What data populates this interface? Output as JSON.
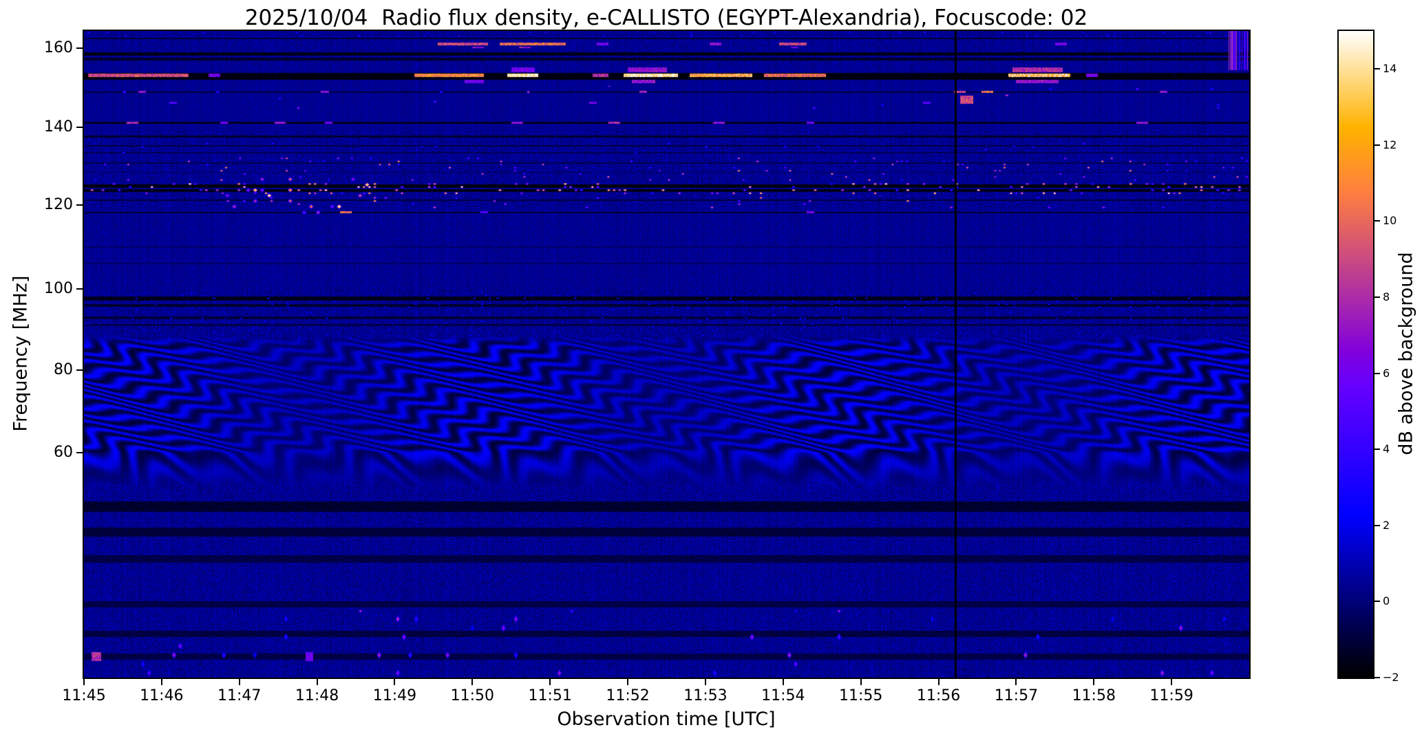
{
  "chart_data": {
    "type": "heatmap",
    "title": "2025/10/04  Radio flux density, e-CALLISTO (EGYPT-Alexandria), Focuscode: 02",
    "xlabel": "Observation time [UTC]",
    "ylabel": "Frequency [MHz]",
    "description": "Solar radio spectrogram (dynamic spectrum); mostly dark-blue background near 0 dB with horizontal RFI bands, bright intermittent bursts near 153 MHz and 118-133 MHz, a wavy interference-fringe pattern between about 58 and 88 MHz, and a vertical black data dropout just after 11:56 UTC.",
    "x_ticks": [
      "11:45",
      "11:46",
      "11:47",
      "11:48",
      "11:49",
      "11:50",
      "11:51",
      "11:52",
      "11:53",
      "11:54",
      "11:55",
      "11:56",
      "11:57",
      "11:58",
      "11:59"
    ],
    "x_tick_minutes": [
      0,
      1,
      2,
      3,
      4,
      5,
      6,
      7,
      8,
      9,
      10,
      11,
      12,
      13,
      14
    ],
    "x_span_min": 15,
    "x_start_utc": "11:45",
    "x_end_utc": "12:00",
    "y_ticks": [
      160,
      140,
      120,
      100,
      80,
      60
    ],
    "y_range_mhz": [
      45,
      166
    ],
    "y_scale_points": [
      [
        0.0,
        166
      ],
      [
        0.027,
        160
      ],
      [
        0.149,
        140
      ],
      [
        0.269,
        120
      ],
      [
        0.399,
        100
      ],
      [
        0.524,
        80
      ],
      [
        0.652,
        60
      ],
      [
        1.0,
        45
      ]
    ],
    "colorbar": {
      "label": "dB above background",
      "ticks": [
        -2,
        0,
        2,
        4,
        6,
        8,
        10,
        12,
        14
      ],
      "tick_labels": [
        "−2",
        "0",
        "2",
        "4",
        "6",
        "8",
        "10",
        "12",
        "14"
      ],
      "vmin": -2,
      "vmax": 15,
      "colormap": "gnuplot2"
    },
    "background_level_db": 0.45,
    "features": {
      "dark_lines": [
        {
          "f": 163.4,
          "w": 0.4,
          "v": -1.0
        },
        {
          "f": 158.6,
          "w": 0.9,
          "v": -1.5
        },
        {
          "f": 157.2,
          "w": 0.7,
          "v": -1.3
        },
        {
          "f": 152.9,
          "w": 1.8,
          "v": -1.7
        },
        {
          "f": 148.9,
          "w": 0.4,
          "v": -1.0
        },
        {
          "f": 141.2,
          "w": 0.5,
          "v": -1.4
        },
        {
          "f": 137.6,
          "w": 0.5,
          "v": -1.2
        },
        {
          "f": 135.2,
          "w": 0.3,
          "v": -0.8
        },
        {
          "f": 133.4,
          "w": 0.4,
          "v": -0.6
        },
        {
          "f": 130.8,
          "w": 0.3,
          "v": -0.7
        },
        {
          "f": 128.4,
          "w": 0.3,
          "v": -0.6
        },
        {
          "f": 124.9,
          "w": 0.9,
          "v": -1.7
        },
        {
          "f": 123.7,
          "w": 0.8,
          "v": -1.6
        },
        {
          "f": 121.2,
          "w": 0.4,
          "v": -1.0
        },
        {
          "f": 118.2,
          "w": 0.4,
          "v": -1.1
        },
        {
          "f": 110.0,
          "w": 0.3,
          "v": -0.3
        },
        {
          "f": 106.0,
          "w": 0.3,
          "v": -0.3
        },
        {
          "f": 97.6,
          "w": 1.0,
          "v": -1.5
        },
        {
          "f": 95.9,
          "w": 0.8,
          "v": -1.2
        },
        {
          "f": 92.8,
          "w": 0.7,
          "v": -1.0
        },
        {
          "f": 91.0,
          "w": 0.5,
          "v": -0.8
        },
        {
          "f": 56.4,
          "w": 0.7,
          "v": -1.2
        },
        {
          "f": 54.7,
          "w": 0.6,
          "v": -1.0
        },
        {
          "f": 52.9,
          "w": 0.5,
          "v": -0.8
        },
        {
          "f": 49.9,
          "w": 0.4,
          "v": -0.8
        },
        {
          "f": 47.9,
          "w": 0.4,
          "v": -0.9
        },
        {
          "f": 46.4,
          "w": 0.4,
          "v": -0.8
        }
      ],
      "bursts": [
        {
          "f": 153.2,
          "w": 0.9,
          "segments": [
            [
              0.05,
              1.35,
              9
            ],
            [
              1.6,
              1.75,
              6
            ],
            [
              4.25,
              5.15,
              11
            ],
            [
              5.45,
              5.85,
              15
            ],
            [
              6.55,
              6.75,
              8
            ],
            [
              6.95,
              7.65,
              15
            ],
            [
              7.8,
              8.6,
              12
            ],
            [
              8.75,
              9.55,
              10
            ],
            [
              11.9,
              12.7,
              13
            ],
            [
              12.9,
              13.05,
              6
            ]
          ]
        },
        {
          "f": 154.6,
          "w": 1.3,
          "segments": [
            [
              5.5,
              5.8,
              6
            ],
            [
              7.0,
              7.5,
              7
            ],
            [
              11.95,
              12.6,
              8
            ]
          ]
        },
        {
          "f": 151.6,
          "w": 1.0,
          "segments": [
            [
              4.9,
              5.15,
              6
            ],
            [
              7.05,
              7.35,
              7
            ],
            [
              12.0,
              12.55,
              7
            ]
          ]
        },
        {
          "f": 161.6,
          "w": 0.9,
          "segments": [
            [
              4.55,
              5.2,
              9
            ],
            [
              5.35,
              6.2,
              10
            ],
            [
              6.6,
              6.75,
              6
            ],
            [
              8.05,
              8.2,
              7
            ],
            [
              8.95,
              9.3,
              9
            ],
            [
              12.5,
              12.65,
              6
            ]
          ]
        },
        {
          "f": 160.3,
          "w": 0.5,
          "segments": [
            [
              5.0,
              5.15,
              7
            ],
            [
              5.6,
              5.75,
              8
            ],
            [
              9.1,
              9.2,
              6
            ]
          ]
        },
        {
          "f": 149.0,
          "w": 0.5,
          "segments": [
            [
              0.7,
              0.8,
              7
            ],
            [
              3.05,
              3.15,
              7
            ],
            [
              7.15,
              7.25,
              8
            ],
            [
              11.2,
              11.35,
              9
            ],
            [
              11.55,
              11.7,
              10
            ],
            [
              13.85,
              13.95,
              7
            ]
          ]
        },
        {
          "f": 147.0,
          "w": 2.2,
          "segments": [
            [
              11.28,
              11.45,
              9
            ]
          ]
        },
        {
          "f": 146.2,
          "w": 0.4,
          "segments": [
            [
              1.1,
              1.2,
              5
            ],
            [
              6.5,
              6.6,
              6
            ],
            [
              10.8,
              10.9,
              5
            ]
          ]
        },
        {
          "f": 141.2,
          "w": 0.5,
          "segments": [
            [
              0.55,
              0.7,
              8
            ],
            [
              1.75,
              1.85,
              6
            ],
            [
              2.45,
              2.6,
              7
            ],
            [
              3.1,
              3.2,
              6
            ],
            [
              5.5,
              5.65,
              7
            ],
            [
              6.75,
              6.9,
              8
            ],
            [
              8.1,
              8.25,
              7
            ],
            [
              9.3,
              9.4,
              6
            ],
            [
              13.55,
              13.7,
              7
            ]
          ]
        },
        {
          "f": 118.2,
          "w": 0.5,
          "segments": [
            [
              3.3,
              3.45,
              10
            ],
            [
              5.1,
              5.2,
              5
            ],
            [
              9.3,
              9.4,
              6
            ]
          ]
        },
        {
          "f": 46.4,
          "w": 0.6,
          "segments": [
            [
              0.1,
              0.22,
              8
            ],
            [
              2.85,
              2.95,
              6
            ]
          ]
        }
      ],
      "speckles": [
        {
          "f1": 126.0,
          "f2": 132.6,
          "density": 0.055,
          "vlo": 3,
          "vhi": 12,
          "cell_t": 0.06,
          "cell_f": 0.8
        },
        {
          "f1": 122.6,
          "f2": 125.9,
          "density": 0.14,
          "vlo": 4,
          "vhi": 15,
          "cell_t": 0.07,
          "cell_f": 0.8
        },
        {
          "f1": 117.5,
          "f2": 127.5,
          "density": 0.1,
          "vlo": 5,
          "vhi": 15,
          "cell_t": 0.09,
          "cell_f": 1.4,
          "t1": 1.8,
          "t2": 3.7
        },
        {
          "f1": 119.0,
          "f2": 122.5,
          "density": 0.035,
          "vlo": 3,
          "vhi": 13,
          "cell_t": 0.07,
          "cell_f": 0.8
        },
        {
          "f1": 133.0,
          "f2": 136.5,
          "density": 0.02,
          "vlo": 2,
          "vhi": 6,
          "cell_t": 0.06,
          "cell_f": 0.8
        },
        {
          "f1": 144.5,
          "f2": 150.5,
          "density": 0.012,
          "vlo": 3,
          "vhi": 9,
          "cell_t": 0.08,
          "cell_f": 0.8
        },
        {
          "f1": 45.0,
          "f2": 49.5,
          "density": 0.02,
          "vlo": 2,
          "vhi": 8,
          "cell_t": 0.08,
          "cell_f": 0.6
        },
        {
          "f1": 87.5,
          "f2": 99.5,
          "density": 0.05,
          "vlo": 1,
          "vhi": 3,
          "cell_t": 0.05,
          "cell_f": 0.7
        },
        {
          "f1": 163.8,
          "f2": 166.0,
          "density": 0.05,
          "vlo": 1.5,
          "vhi": 5,
          "cell_t": 0.04,
          "cell_f": 1.1
        }
      ],
      "noise_bands": [
        {
          "f1": 155,
          "f2": 166,
          "amp": 0.6
        },
        {
          "f1": 119,
          "f2": 139,
          "amp": 0.8
        },
        {
          "f1": 100,
          "f2": 118,
          "amp": 0.35
        },
        {
          "f1": 87,
          "f2": 100,
          "amp": 0.9
        },
        {
          "f1": 45,
          "f2": 58,
          "amp": 0.8
        }
      ],
      "waves": {
        "f1": 57.5,
        "f2": 88.5,
        "stripe_mhz": 2.3,
        "warp1_mhz": 2.2,
        "warp1_period_min": 2.65,
        "warp2_mhz": 1.1,
        "warp2_period_min": 0.95,
        "amp_db": 1.5
      },
      "dropout": {
        "t_min": 11.22,
        "width_min": 0.03,
        "v": -2
      },
      "right_edge_streaks": {
        "t1": 14.72,
        "t2": 15.0,
        "f1": 154.5,
        "f2": 166.0,
        "density": 0.55,
        "vlo": 3,
        "vhi": 9
      }
    }
  }
}
